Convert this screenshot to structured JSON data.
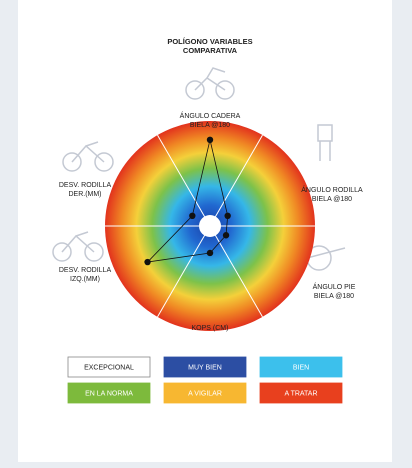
{
  "chart_data": {
    "type": "radar",
    "title": [
      "POLÍGONO VARIABLES",
      "COMPARATIVA"
    ],
    "categories": [
      [
        "ÁNGULO CADERA",
        "BIELA @180"
      ],
      [
        "ÁNGULO RODILLA",
        "BIELA @180"
      ],
      [
        "ÁNGULO PIE",
        "BIELA @180"
      ],
      [
        "KOPS (CM)"
      ],
      [
        "DESV. RODILLA",
        "IZQ.(MM)"
      ],
      [
        "DESV. RODILLA",
        "DER.(MM)"
      ]
    ],
    "values": [
      0.8,
      0.1,
      0.08,
      0.17,
      0.65,
      0.1
    ],
    "rlim": [
      0,
      1
    ],
    "color": "#111111",
    "legend": [
      {
        "name": "EXCEPCIONAL",
        "color": "#ffffff"
      },
      {
        "name": "MUY BIEN",
        "color": "#2c4ea3"
      },
      {
        "name": "BIEN",
        "color": "#3cc0ec"
      },
      {
        "name": "EN LA NORMA",
        "color": "#7dba3c"
      },
      {
        "name": "A VIGILAR",
        "color": "#f7b731"
      },
      {
        "name": "A TRATAR",
        "color": "#e8401e"
      }
    ]
  }
}
